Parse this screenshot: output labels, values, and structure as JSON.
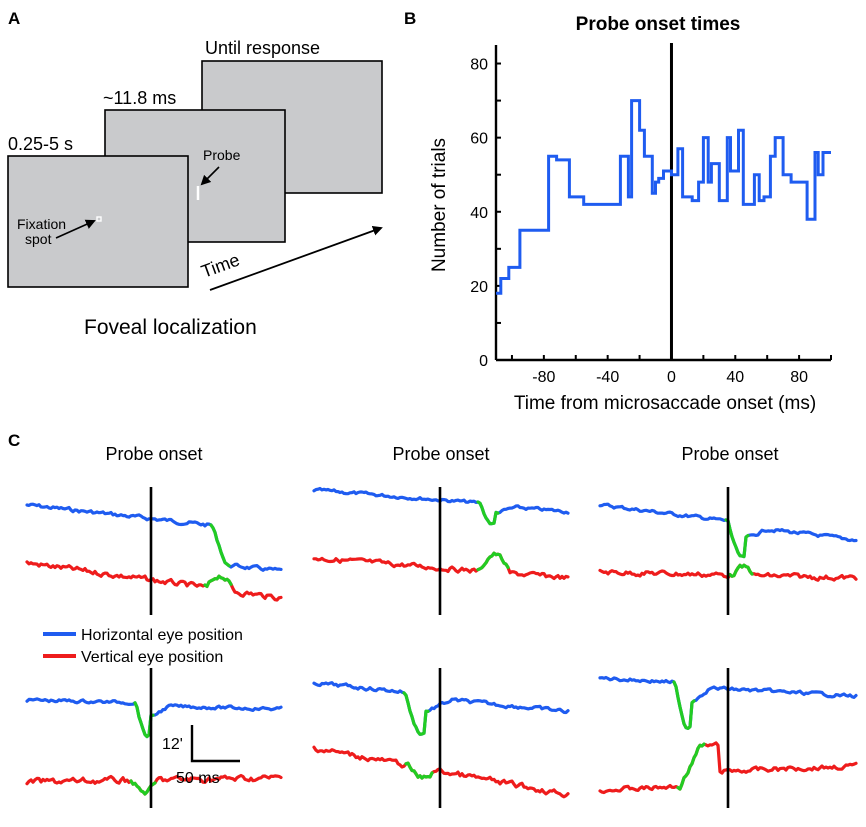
{
  "panels": {
    "a": "A",
    "b": "B",
    "c": "C"
  },
  "panel_a": {
    "screen1_duration": "0.25-5 s",
    "screen2_duration": "~11.8 ms",
    "screen3_duration": "Until response",
    "probe_label": "Probe",
    "fixation_label_line1": "Fixation",
    "fixation_label_line2": "spot",
    "time_label": "Time",
    "task_name": "Foveal localization",
    "screen_color": "#c9cacc"
  },
  "chart_data": {
    "type": "line",
    "title": "Probe onset times",
    "xlabel": "Time from microsaccade onset (ms)",
    "ylabel": "Number of trials",
    "xlim": [
      -110,
      100
    ],
    "ylim": [
      0,
      85
    ],
    "x_ticks": [
      "-80",
      "-40",
      "0",
      "40",
      "80"
    ],
    "y_ticks": [
      "0",
      "20",
      "40",
      "60",
      "80"
    ],
    "vertical_line_x": 0,
    "series": [
      {
        "color": "#1f5cf0",
        "step": true,
        "bin_edges": [
          -110,
          -107,
          -102,
          -95,
          -87,
          -82,
          -77,
          -72,
          -64,
          -55,
          -35,
          -32,
          -27,
          -25,
          -20,
          -17,
          -12,
          -10,
          -8,
          -5,
          0,
          4,
          7,
          13,
          17,
          20,
          23,
          25,
          30,
          35,
          37,
          42,
          45,
          52,
          55,
          58,
          62,
          65,
          70,
          72,
          75,
          82,
          85,
          90,
          92,
          95,
          100
        ],
        "values": [
          18,
          22,
          25,
          35,
          35,
          35,
          55,
          54,
          44,
          42,
          42,
          55,
          44,
          70,
          62,
          55,
          45,
          48,
          49,
          51,
          50,
          57,
          44,
          43,
          48,
          60,
          48,
          53,
          43,
          60,
          51,
          62,
          42,
          50,
          43,
          44,
          55,
          60,
          50,
          50,
          48,
          48,
          38,
          56,
          50,
          56
        ]
      }
    ]
  },
  "panel_c": {
    "column_titles": [
      "Probe onset",
      "Probe onset",
      "Probe onset"
    ],
    "legend": {
      "horizontal": "Horizontal eye position",
      "vertical": "Vertical eye position",
      "horizontal_color": "#1f5cf0",
      "vertical_color": "#ee1c1c",
      "saccade_color": "#22cc22"
    },
    "scale_bar_vertical": "12'",
    "scale_bar_horizontal": "50 ms"
  }
}
